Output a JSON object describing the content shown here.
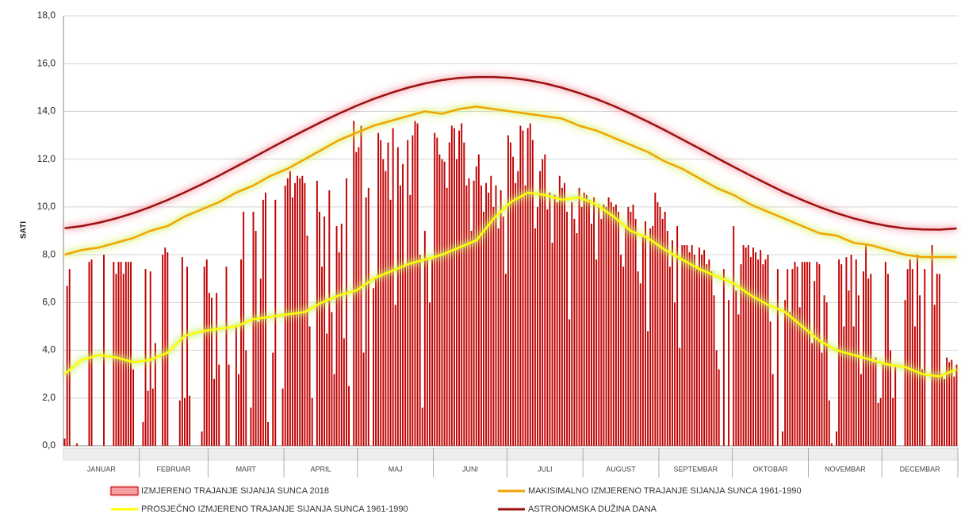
{
  "chart_data": {
    "type": "bar",
    "y_label": "SATI",
    "ylim": [
      0,
      18
    ],
    "yticks": [
      {
        "value": 0,
        "label": "0,0"
      },
      {
        "value": 2,
        "label": "2,0"
      },
      {
        "value": 4,
        "label": "4,0"
      },
      {
        "value": 6,
        "label": "6,0"
      },
      {
        "value": 8,
        "label": "8,0"
      },
      {
        "value": 10,
        "label": "10,0"
      },
      {
        "value": 12,
        "label": "12,0"
      },
      {
        "value": 14,
        "label": "14,0"
      },
      {
        "value": 16,
        "label": "16,0"
      },
      {
        "value": 18,
        "label": "18,0"
      }
    ],
    "xlim": [
      0.5,
      365.5
    ],
    "grid": true,
    "months": [
      {
        "label": "JANUAR",
        "from": 1,
        "to": 31
      },
      {
        "label": "FEBRUAR",
        "from": 32,
        "to": 59
      },
      {
        "label": "MART",
        "from": 60,
        "to": 90
      },
      {
        "label": "APRIL",
        "from": 91,
        "to": 120
      },
      {
        "label": "MAJ",
        "from": 121,
        "to": 151
      },
      {
        "label": "JUNI",
        "from": 152,
        "to": 181
      },
      {
        "label": "JULI",
        "from": 182,
        "to": 212
      },
      {
        "label": "AUGUST",
        "from": 213,
        "to": 243
      },
      {
        "label": "SEPTEMBAR",
        "from": 244,
        "to": 273
      },
      {
        "label": "OKTOBAR",
        "from": 274,
        "to": 304
      },
      {
        "label": "NOVEMBAR",
        "from": 305,
        "to": 334
      },
      {
        "label": "DECEMBAR",
        "from": 335,
        "to": 365
      }
    ],
    "series": [
      {
        "name": "IZMJERENO TRAJANJE SIJANJA SUNCA 2018",
        "type": "bar",
        "color": "#c00000",
        "glow": "#f4a0a0",
        "values": [
          0.3,
          6.7,
          7.4,
          0,
          0,
          0.1,
          0,
          0,
          0,
          0,
          7.7,
          7.8,
          0,
          0,
          0,
          0,
          8.0,
          0,
          0,
          0,
          7.7,
          7.2,
          7.7,
          7.7,
          7.2,
          7.7,
          7.7,
          7.7,
          3.2,
          0,
          0,
          0,
          1.0,
          7.4,
          2.3,
          7.3,
          2.4,
          4.3,
          0,
          0,
          8.0,
          8.3,
          8.1,
          0,
          0,
          0,
          0,
          1.9,
          7.9,
          2.0,
          7.5,
          2.1,
          0,
          0,
          0,
          0,
          0.6,
          7.5,
          7.8,
          6.4,
          6.2,
          2.8,
          6.4,
          3.4,
          0,
          0,
          7.5,
          3.4,
          0,
          0,
          5.0,
          3.0,
          7.8,
          9.8,
          4.0,
          0,
          1.6,
          9.8,
          9.0,
          5.2,
          7.0,
          10.3,
          10.6,
          1.0,
          0,
          3.9,
          10.3,
          0,
          0,
          2.4,
          10.9,
          11.2,
          11.5,
          10.4,
          11.0,
          11.3,
          11.2,
          11.3,
          11.0,
          8.8,
          5.0,
          2.0,
          0,
          11.1,
          9.8,
          7.5,
          9.6,
          4.7,
          10.7,
          5.6,
          3.0,
          9.2,
          8.1,
          9.3,
          4.5,
          11.2,
          2.5,
          0,
          13.6,
          12.3,
          12.5,
          13.4,
          3.9,
          10.4,
          10.8,
          0,
          6.6,
          7.0,
          13.1,
          12.8,
          12.0,
          11.5,
          12.7,
          10.3,
          13.3,
          5.9,
          12.5,
          10.9,
          11.8,
          7.5,
          12.8,
          10.5,
          13.0,
          13.6,
          13.5,
          8.0,
          1.6,
          9.0,
          7.8,
          6.0,
          7.8,
          13.1,
          12.9,
          12.2,
          12.0,
          11.9,
          10.8,
          12.7,
          13.4,
          13.3,
          12.0,
          13.2,
          13.5,
          12.7,
          10.9,
          11.2,
          9.0,
          11.1,
          11.7,
          12.2,
          10.9,
          9.8,
          11.0,
          10.6,
          11.3,
          10.0,
          10.9,
          9.1,
          10.7,
          9.6,
          7.2,
          13.0,
          12.7,
          12.1,
          11.0,
          11.5,
          13.4,
          13.2,
          10.9,
          13.3,
          13.5,
          12.8,
          9.1,
          10.0,
          11.5,
          12.0,
          12.2,
          9.9,
          10.6,
          8.5,
          10.5,
          10.2,
          11.3,
          10.8,
          11.0,
          9.8,
          5.3,
          10.2,
          9.5,
          8.9,
          10.8,
          10.0,
          10.6,
          10.5,
          10.3,
          9.3,
          10.4,
          7.8,
          10.1,
          9.5,
          10.1,
          10.0,
          10.4,
          10.2,
          10.0,
          10.1,
          9.8,
          8.0,
          7.5,
          9.2,
          10.0,
          9.8,
          10.1,
          9.5,
          7.3,
          6.8,
          8.8,
          9.4,
          4.8,
          9.1,
          9.2,
          10.6,
          10.2,
          10.0,
          9.5,
          9.8,
          9.0,
          7.5,
          8.6,
          6.0,
          9.2,
          4.1,
          8.4,
          8.4,
          8.4,
          8.1,
          8.4,
          8.0,
          7.4,
          8.3,
          8.0,
          8.2,
          7.6,
          7.8,
          7.3,
          6.3,
          4.0,
          3.2,
          0,
          7.4,
          0,
          6.1,
          0,
          9.2,
          6.5,
          5.5,
          7.6,
          8.4,
          8.3,
          8.4,
          7.9,
          8.3,
          8.1,
          7.8,
          8.2,
          7.6,
          7.8,
          8.0,
          5.2,
          3.0,
          0,
          7.4,
          0,
          0.6,
          6.1,
          7.4,
          5.6,
          7.4,
          7.7,
          7.5,
          5.8,
          7.7,
          7.7,
          7.7,
          7.7,
          4.3,
          6.9,
          7.7,
          7.6,
          3.9,
          6.3,
          6.0,
          1.9,
          0.1,
          0,
          0.6,
          7.8,
          7.6,
          5.0,
          7.9,
          6.5,
          8.0,
          5.0,
          7.8,
          6.3,
          3.0,
          7.3,
          8.4,
          7.0,
          7.2,
          3.5,
          3.7,
          1.8,
          2.0,
          3.5,
          7.7,
          7.2,
          4.0,
          2.0,
          3.3,
          0,
          0,
          0,
          6.1,
          7.4,
          7.8,
          7.4,
          5.0,
          8.0,
          6.3,
          3.2,
          7.4,
          0,
          0,
          8.4,
          5.9,
          7.2,
          7.2,
          3.0,
          2.8,
          3.7,
          3.5,
          3.6,
          2.9,
          3.4
        ]
      },
      {
        "name": "MAKISIMALNO IZMJERENO TRAJANJE SIJANJA SUNCA 1961-1990",
        "type": "line",
        "color": "#f0a500",
        "glow": "#d8f070",
        "x": [
          1,
          8,
          15,
          22,
          29,
          36,
          43,
          50,
          57,
          64,
          71,
          78,
          85,
          92,
          99,
          106,
          113,
          120,
          127,
          134,
          141,
          148,
          155,
          162,
          169,
          176,
          183,
          190,
          197,
          204,
          211,
          218,
          225,
          232,
          239,
          246,
          253,
          260,
          267,
          274,
          281,
          288,
          295,
          302,
          309,
          316,
          323,
          330,
          337,
          344,
          351,
          358,
          365
        ],
        "values": [
          8.0,
          8.2,
          8.3,
          8.5,
          8.7,
          9.0,
          9.2,
          9.6,
          9.9,
          10.2,
          10.6,
          10.9,
          11.3,
          11.6,
          12.0,
          12.4,
          12.8,
          13.1,
          13.4,
          13.6,
          13.8,
          14.0,
          13.9,
          14.1,
          14.2,
          14.1,
          14.0,
          13.9,
          13.8,
          13.7,
          13.4,
          13.2,
          12.9,
          12.6,
          12.3,
          11.9,
          11.6,
          11.2,
          10.8,
          10.5,
          10.1,
          9.8,
          9.5,
          9.2,
          8.9,
          8.8,
          8.5,
          8.4,
          8.2,
          8.0,
          7.9,
          7.9,
          7.9
        ]
      },
      {
        "name": "PROSJEČNO IZMJERENO TRAJANJE SIJANJA SUNCA 1961-1990",
        "type": "line",
        "color": "#ffff00",
        "glow": "#c8f060",
        "x": [
          1,
          8,
          15,
          22,
          29,
          36,
          43,
          50,
          57,
          64,
          71,
          78,
          85,
          92,
          99,
          106,
          113,
          120,
          127,
          134,
          141,
          148,
          155,
          162,
          169,
          176,
          183,
          190,
          197,
          204,
          211,
          218,
          225,
          232,
          239,
          246,
          253,
          260,
          267,
          274,
          281,
          288,
          295,
          302,
          309,
          316,
          323,
          330,
          337,
          344,
          351,
          358,
          365
        ],
        "values": [
          3.0,
          3.6,
          3.8,
          3.7,
          3.5,
          3.6,
          3.9,
          4.6,
          4.8,
          4.9,
          5.0,
          5.3,
          5.4,
          5.5,
          5.6,
          6.0,
          6.3,
          6.5,
          7.0,
          7.3,
          7.6,
          7.8,
          8.0,
          8.3,
          8.6,
          9.5,
          10.2,
          10.6,
          10.5,
          10.3,
          10.4,
          10.1,
          9.6,
          9.0,
          8.7,
          8.2,
          7.8,
          7.4,
          7.1,
          6.8,
          6.3,
          5.9,
          5.6,
          5.0,
          4.4,
          4.0,
          3.8,
          3.6,
          3.4,
          3.3,
          3.0,
          2.9,
          3.2
        ]
      },
      {
        "name": "ASTRONOMSKA DUŽINA DANA",
        "type": "line",
        "color": "#9b1010",
        "glow": "#f4a0a8",
        "x": [
          1,
          8,
          15,
          22,
          29,
          36,
          43,
          50,
          57,
          64,
          71,
          78,
          85,
          92,
          99,
          106,
          113,
          120,
          127,
          134,
          141,
          148,
          155,
          162,
          169,
          176,
          183,
          190,
          197,
          204,
          211,
          218,
          225,
          232,
          239,
          246,
          253,
          260,
          267,
          274,
          281,
          288,
          295,
          302,
          309,
          316,
          323,
          330,
          337,
          344,
          351,
          358,
          365
        ],
        "values": [
          9.11,
          9.2,
          9.34,
          9.52,
          9.74,
          10.0,
          10.29,
          10.61,
          10.95,
          11.31,
          11.69,
          12.07,
          12.46,
          12.84,
          13.21,
          13.57,
          13.91,
          14.23,
          14.52,
          14.77,
          14.99,
          15.17,
          15.31,
          15.4,
          15.44,
          15.44,
          15.4,
          15.31,
          15.17,
          14.99,
          14.77,
          14.52,
          14.23,
          13.91,
          13.57,
          13.21,
          12.83,
          12.45,
          12.06,
          11.68,
          11.31,
          10.95,
          10.6,
          10.29,
          10.0,
          9.74,
          9.52,
          9.34,
          9.2,
          9.1,
          9.06,
          9.05,
          9.1
        ]
      }
    ]
  }
}
